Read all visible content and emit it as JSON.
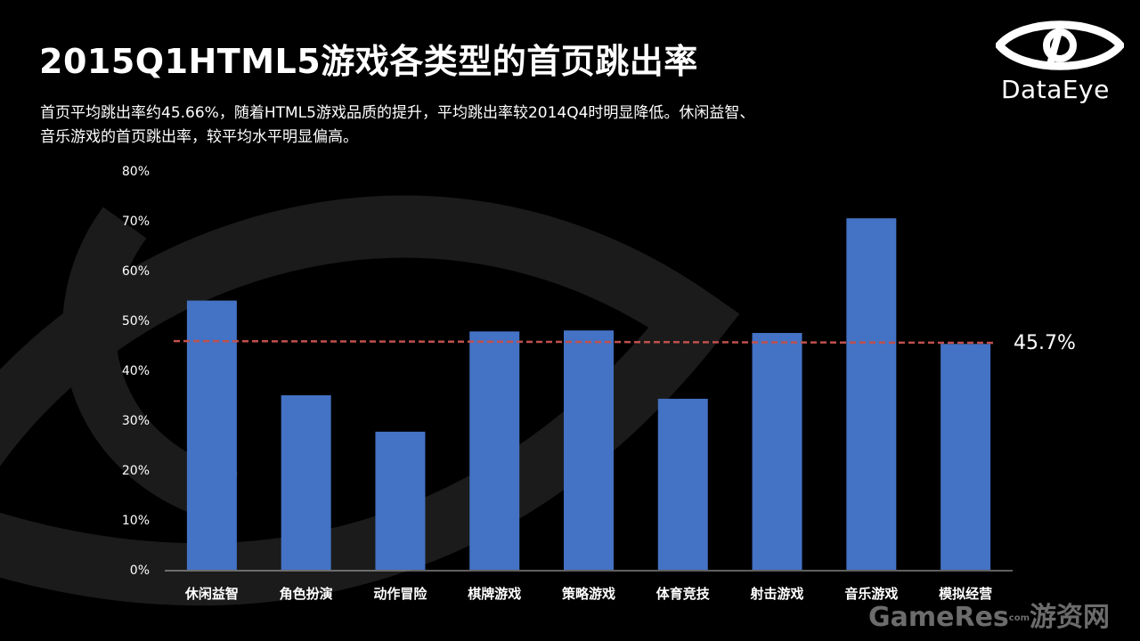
{
  "header": {
    "title": "2015Q1HTML5游戏各类型的首页跳出率",
    "subtitle_line1": "首页平均跳出率约45.66%，随着HTML5游戏品质的提升，平均跳出率较2014Q4时明显降低。休闲益智、",
    "subtitle_line2": "音乐游戏的首页跳出率，较平均水平明显偏高。"
  },
  "logo": {
    "text": "DataEye",
    "icon": "eye-logo-icon"
  },
  "watermark": {
    "text": "GameRes",
    "com": "com",
    "cn": "游资网"
  },
  "colors": {
    "bar": "#4472C4",
    "avg_line": "#C0504D",
    "axis": "#bfbfbf",
    "text": "#ffffff",
    "background": "#000000"
  },
  "chart_data": {
    "type": "bar",
    "categories": [
      "休闲益智",
      "角色扮演",
      "动作冒险",
      "棋牌游戏",
      "策略游戏",
      "体育竞技",
      "射击游戏",
      "音乐游戏",
      "模拟经营"
    ],
    "values": [
      54.0,
      35.0,
      27.7,
      47.8,
      48.0,
      34.3,
      47.5,
      70.5,
      45.3
    ],
    "ylim": [
      0,
      80
    ],
    "yticks": [
      "0%",
      "10%",
      "20%",
      "30%",
      "40%",
      "50%",
      "60%",
      "70%",
      "80%"
    ],
    "average": {
      "value": 45.7,
      "label": "45.7%"
    },
    "grid": false,
    "legend": "none"
  }
}
